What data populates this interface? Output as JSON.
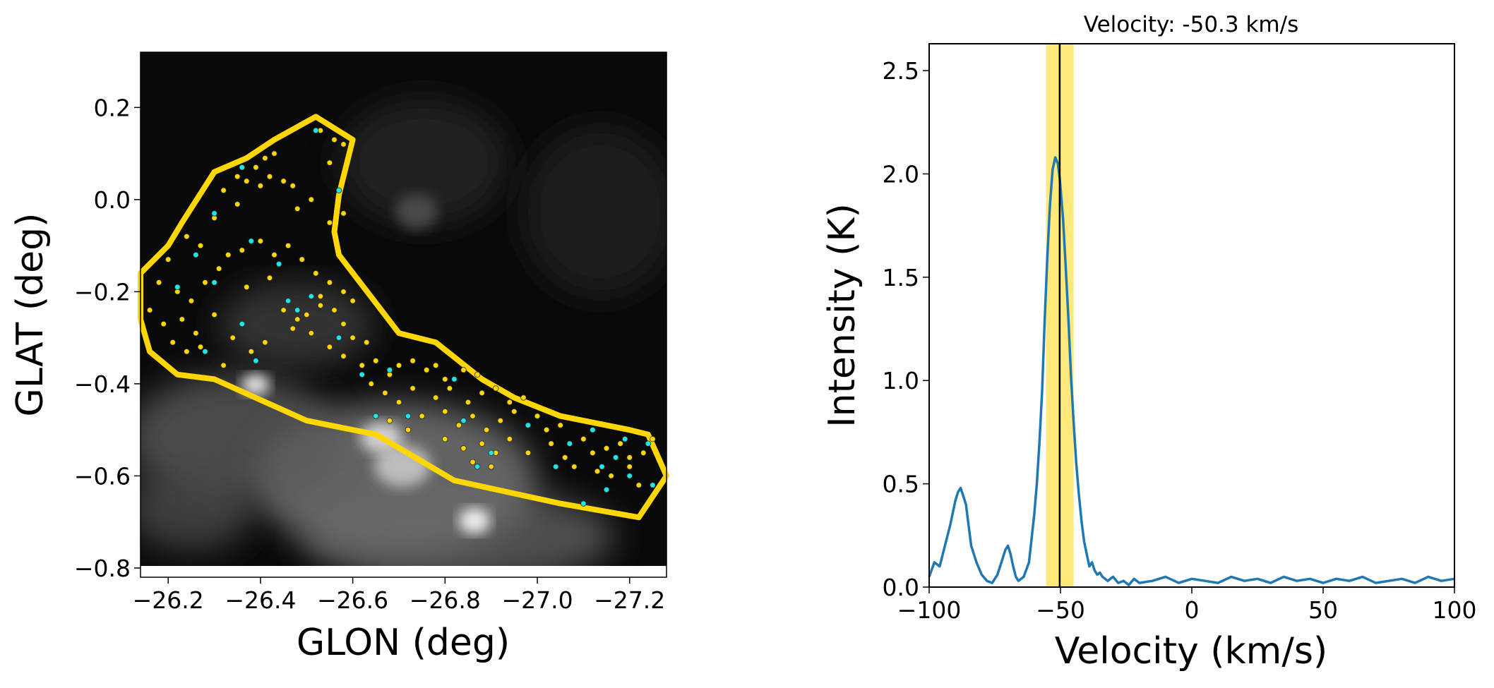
{
  "chart_data": [
    {
      "type": "scatter",
      "title": "",
      "xlabel": "GLON (deg)",
      "ylabel": "GLAT (deg)",
      "xlim": [
        -26.14,
        -27.28
      ],
      "ylim": [
        -0.82,
        0.32
      ],
      "xticks": [
        -26.2,
        -26.4,
        -26.6,
        -26.8,
        -27.0,
        -27.2
      ],
      "yticks": [
        0.2,
        0.0,
        -0.2,
        -0.4,
        -0.6,
        -0.8
      ],
      "xtick_labels": [
        "−26.2",
        "−26.4",
        "−26.6",
        "−26.8",
        "−27.0",
        "−27.2"
      ],
      "ytick_labels": [
        "0.2",
        "0.0",
        "−0.2",
        "−0.4",
        "−0.6",
        "−0.8"
      ],
      "background": "grayscale intensity map",
      "region_color": "#ffd700",
      "region_polygon": [
        [
          -26.52,
          0.18
        ],
        [
          -26.6,
          0.13
        ],
        [
          -26.57,
          0.01
        ],
        [
          -26.56,
          -0.07
        ],
        [
          -26.57,
          -0.12
        ],
        [
          -26.7,
          -0.29
        ],
        [
          -26.78,
          -0.31
        ],
        [
          -26.88,
          -0.39
        ],
        [
          -26.95,
          -0.43
        ],
        [
          -27.05,
          -0.47
        ],
        [
          -27.2,
          -0.5
        ],
        [
          -27.24,
          -0.51
        ],
        [
          -27.28,
          -0.6
        ],
        [
          -27.22,
          -0.69
        ],
        [
          -27.05,
          -0.66
        ],
        [
          -26.82,
          -0.61
        ],
        [
          -26.65,
          -0.51
        ],
        [
          -26.5,
          -0.48
        ],
        [
          -26.3,
          -0.39
        ],
        [
          -26.22,
          -0.38
        ],
        [
          -26.16,
          -0.33
        ],
        [
          -26.14,
          -0.26
        ],
        [
          -26.14,
          -0.16
        ],
        [
          -26.2,
          -0.1
        ],
        [
          -26.23,
          -0.05
        ],
        [
          -26.3,
          0.06
        ],
        [
          -26.37,
          0.09
        ],
        [
          -26.43,
          0.13
        ]
      ],
      "series": [
        {
          "color": "#ffd700",
          "points": [
            [
              -26.53,
              0.15
            ],
            [
              -26.56,
              0.13
            ],
            [
              -26.58,
              0.12
            ],
            [
              -26.55,
              0.08
            ],
            [
              -26.39,
              0.07
            ],
            [
              -26.41,
              0.09
            ],
            [
              -26.43,
              0.1
            ],
            [
              -26.35,
              0.05
            ],
            [
              -26.37,
              0.04
            ],
            [
              -26.4,
              0.03
            ],
            [
              -26.42,
              0.05
            ],
            [
              -26.45,
              0.04
            ],
            [
              -26.47,
              0.03
            ],
            [
              -26.32,
              0.02
            ],
            [
              -26.35,
              -0.01
            ],
            [
              -26.3,
              -0.04
            ],
            [
              -26.48,
              -0.02
            ],
            [
              -26.51,
              0.0
            ],
            [
              -26.55,
              -0.05
            ],
            [
              -26.58,
              -0.03
            ],
            [
              -26.24,
              -0.08
            ],
            [
              -26.27,
              -0.1
            ],
            [
              -26.33,
              -0.12
            ],
            [
              -26.36,
              -0.11
            ],
            [
              -26.4,
              -0.09
            ],
            [
              -26.43,
              -0.12
            ],
            [
              -26.46,
              -0.1
            ],
            [
              -26.49,
              -0.13
            ],
            [
              -26.2,
              -0.13
            ],
            [
              -26.18,
              -0.18
            ],
            [
              -26.22,
              -0.2
            ],
            [
              -26.25,
              -0.22
            ],
            [
              -26.28,
              -0.18
            ],
            [
              -26.31,
              -0.15
            ],
            [
              -26.37,
              -0.19
            ],
            [
              -26.42,
              -0.17
            ],
            [
              -26.52,
              -0.16
            ],
            [
              -26.55,
              -0.18
            ],
            [
              -26.58,
              -0.2
            ],
            [
              -26.53,
              -0.21
            ],
            [
              -26.16,
              -0.24
            ],
            [
              -26.19,
              -0.27
            ],
            [
              -26.23,
              -0.26
            ],
            [
              -26.26,
              -0.29
            ],
            [
              -26.3,
              -0.25
            ],
            [
              -26.45,
              -0.24
            ],
            [
              -26.48,
              -0.26
            ],
            [
              -26.5,
              -0.25
            ],
            [
              -26.53,
              -0.23
            ],
            [
              -26.56,
              -0.24
            ],
            [
              -26.58,
              -0.27
            ],
            [
              -26.6,
              -0.22
            ],
            [
              -26.21,
              -0.31
            ],
            [
              -26.24,
              -0.33
            ],
            [
              -26.27,
              -0.32
            ],
            [
              -26.34,
              -0.3
            ],
            [
              -26.41,
              -0.31
            ],
            [
              -26.47,
              -0.28
            ],
            [
              -26.51,
              -0.29
            ],
            [
              -26.55,
              -0.32
            ],
            [
              -26.58,
              -0.34
            ],
            [
              -26.62,
              -0.36
            ],
            [
              -26.65,
              -0.35
            ],
            [
              -26.68,
              -0.38
            ],
            [
              -26.7,
              -0.36
            ],
            [
              -26.73,
              -0.35
            ],
            [
              -26.76,
              -0.37
            ],
            [
              -26.78,
              -0.36
            ],
            [
              -26.8,
              -0.39
            ],
            [
              -26.84,
              -0.37
            ],
            [
              -26.87,
              -0.38
            ],
            [
              -26.64,
              -0.4
            ],
            [
              -26.67,
              -0.42
            ],
            [
              -26.7,
              -0.44
            ],
            [
              -26.73,
              -0.41
            ],
            [
              -26.78,
              -0.43
            ],
            [
              -26.81,
              -0.41
            ],
            [
              -26.85,
              -0.44
            ],
            [
              -26.88,
              -0.42
            ],
            [
              -26.91,
              -0.41
            ],
            [
              -26.94,
              -0.44
            ],
            [
              -26.97,
              -0.43
            ],
            [
              -26.68,
              -0.48
            ],
            [
              -26.72,
              -0.5
            ],
            [
              -26.75,
              -0.47
            ],
            [
              -26.8,
              -0.46
            ],
            [
              -26.83,
              -0.49
            ],
            [
              -26.86,
              -0.47
            ],
            [
              -26.89,
              -0.5
            ],
            [
              -26.92,
              -0.48
            ],
            [
              -26.95,
              -0.46
            ],
            [
              -27.0,
              -0.47
            ],
            [
              -27.02,
              -0.5
            ],
            [
              -27.05,
              -0.49
            ],
            [
              -26.84,
              -0.54
            ],
            [
              -26.88,
              -0.53
            ],
            [
              -26.91,
              -0.55
            ],
            [
              -26.94,
              -0.52
            ],
            [
              -26.98,
              -0.55
            ],
            [
              -27.03,
              -0.53
            ],
            [
              -27.06,
              -0.56
            ],
            [
              -27.1,
              -0.52
            ],
            [
              -27.12,
              -0.55
            ],
            [
              -27.15,
              -0.54
            ],
            [
              -27.18,
              -0.53
            ],
            [
              -27.2,
              -0.56
            ],
            [
              -27.23,
              -0.55
            ],
            [
              -27.25,
              -0.52
            ],
            [
              -27.08,
              -0.58
            ],
            [
              -27.13,
              -0.59
            ],
            [
              -27.16,
              -0.6
            ],
            [
              -27.2,
              -0.58
            ],
            [
              -27.22,
              -0.62
            ],
            [
              -26.9,
              -0.58
            ],
            [
              -26.86,
              -0.57
            ],
            [
              -26.8,
              -0.52
            ],
            [
              -26.63,
              -0.31
            ],
            [
              -26.6,
              -0.3
            ],
            [
              -26.32,
              -0.36
            ],
            [
              -26.38,
              -0.33
            ]
          ]
        },
        {
          "color": "#1ee6e6",
          "points": [
            [
              -26.52,
              0.15
            ],
            [
              -26.36,
              0.07
            ],
            [
              -26.57,
              0.02
            ],
            [
              -26.3,
              -0.03
            ],
            [
              -26.26,
              -0.12
            ],
            [
              -26.38,
              -0.09
            ],
            [
              -26.44,
              -0.14
            ],
            [
              -26.22,
              -0.19
            ],
            [
              -26.46,
              -0.22
            ],
            [
              -26.51,
              -0.21
            ],
            [
              -26.28,
              -0.33
            ],
            [
              -26.36,
              -0.27
            ],
            [
              -26.39,
              -0.35
            ],
            [
              -26.68,
              -0.37
            ],
            [
              -26.82,
              -0.39
            ],
            [
              -26.72,
              -0.47
            ],
            [
              -26.65,
              -0.47
            ],
            [
              -26.84,
              -0.48
            ],
            [
              -26.9,
              -0.55
            ],
            [
              -26.87,
              -0.58
            ],
            [
              -26.98,
              -0.49
            ],
            [
              -27.07,
              -0.53
            ],
            [
              -27.12,
              -0.5
            ],
            [
              -27.19,
              -0.52
            ],
            [
              -27.24,
              -0.53
            ],
            [
              -27.14,
              -0.58
            ],
            [
              -27.17,
              -0.56
            ],
            [
              -27.15,
              -0.63
            ],
            [
              -27.1,
              -0.66
            ],
            [
              -27.25,
              -0.62
            ],
            [
              -27.2,
              -0.6
            ],
            [
              -27.04,
              -0.58
            ],
            [
              -26.62,
              -0.38
            ],
            [
              -26.3,
              -0.18
            ],
            [
              -26.48,
              -0.24
            ],
            [
              -26.57,
              -0.3
            ]
          ]
        }
      ]
    },
    {
      "type": "line",
      "title": "Velocity: -50.3 km/s",
      "xlabel": "Velocity (km/s)",
      "ylabel": "Intensity (K)",
      "xlim": [
        -100,
        100
      ],
      "ylim": [
        0,
        2.63
      ],
      "xticks": [
        -100,
        -50,
        0,
        50,
        100
      ],
      "yticks": [
        0.0,
        0.5,
        1.0,
        1.5,
        2.0,
        2.5
      ],
      "xtick_labels": [
        "−100",
        "−50",
        "0",
        "50",
        "100"
      ],
      "ytick_labels": [
        "0.0",
        "0.5",
        "1.0",
        "1.5",
        "2.0",
        "2.5"
      ],
      "marker_velocity": -50.3,
      "highlight_band": [
        -55.5,
        -45
      ],
      "highlight_color": "#ffe66e",
      "line_color": "#1f77b4",
      "series": [
        {
          "x": [
            -100,
            -98,
            -96,
            -94,
            -92,
            -90,
            -89,
            -88,
            -87,
            -86,
            -85,
            -84,
            -82,
            -80,
            -78,
            -76,
            -74,
            -72,
            -71,
            -70,
            -69,
            -68,
            -67,
            -66,
            -64,
            -62,
            -60,
            -59,
            -58,
            -57,
            -56,
            -55,
            -54,
            -53,
            -52,
            -51,
            -50.3,
            -49,
            -48,
            -47,
            -46,
            -45,
            -44,
            -43,
            -42,
            -41,
            -40,
            -39,
            -38,
            -37,
            -36,
            -35,
            -34,
            -32,
            -30,
            -28,
            -26,
            -24,
            -22,
            -20,
            -15,
            -10,
            -5,
            0,
            5,
            10,
            15,
            20,
            25,
            30,
            35,
            40,
            45,
            50,
            55,
            60,
            65,
            70,
            75,
            80,
            85,
            90,
            95,
            100
          ],
          "y": [
            0.05,
            0.12,
            0.1,
            0.2,
            0.3,
            0.42,
            0.46,
            0.48,
            0.44,
            0.4,
            0.3,
            0.2,
            0.12,
            0.06,
            0.03,
            0.02,
            0.06,
            0.14,
            0.18,
            0.2,
            0.16,
            0.1,
            0.05,
            0.03,
            0.05,
            0.12,
            0.35,
            0.5,
            0.7,
            0.95,
            1.3,
            1.6,
            1.85,
            2.02,
            2.08,
            2.05,
            1.98,
            1.78,
            1.55,
            1.3,
            1.02,
            0.8,
            0.6,
            0.45,
            0.32,
            0.22,
            0.16,
            0.1,
            0.12,
            0.08,
            0.06,
            0.07,
            0.05,
            0.03,
            0.05,
            0.02,
            0.03,
            0.01,
            0.04,
            0.02,
            0.03,
            0.05,
            0.02,
            0.04,
            0.03,
            0.02,
            0.05,
            0.03,
            0.04,
            0.02,
            0.05,
            0.03,
            0.04,
            0.02,
            0.04,
            0.03,
            0.05,
            0.02,
            0.03,
            0.04,
            0.02,
            0.05,
            0.03,
            0.04
          ]
        }
      ]
    }
  ]
}
